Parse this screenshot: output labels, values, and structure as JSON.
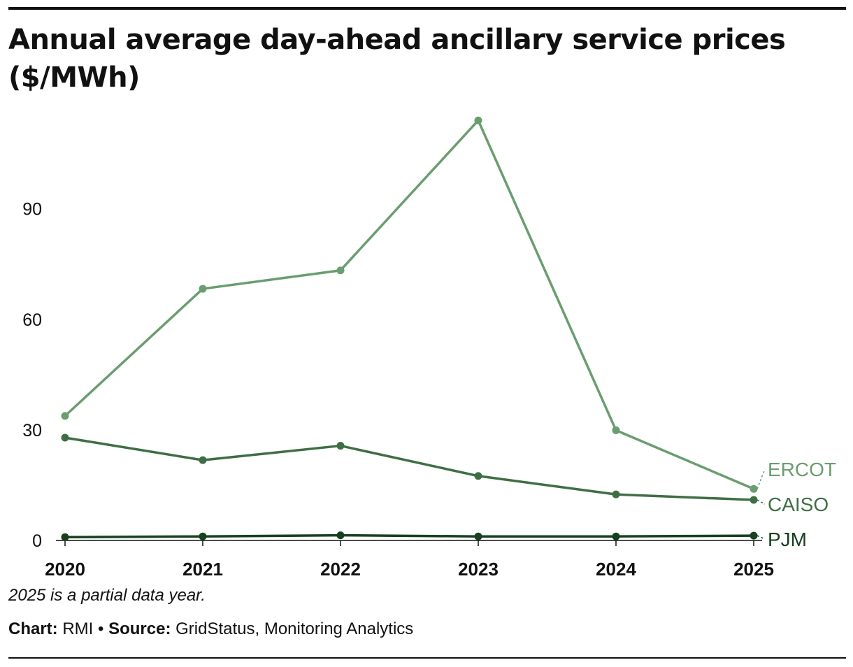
{
  "title": "Annual average day-ahead ancillary service prices ($/MWh)",
  "note": "2025 is a partial data year.",
  "source": {
    "chart_label": "Chart:",
    "chart_value": "RMI",
    "separator": " • ",
    "source_label": "Source:",
    "source_value": "GridStatus, Monitoring Analytics"
  },
  "chart_data": {
    "type": "line",
    "title": "Annual average day-ahead ancillary service prices ($/MWh)",
    "xlabel": "",
    "ylabel": "",
    "x": [
      "2020",
      "2021",
      "2022",
      "2023",
      "2024",
      "2025"
    ],
    "ylim": [
      0,
      115
    ],
    "yticks": [
      "0",
      "30",
      "60",
      "90"
    ],
    "grid": false,
    "legend": "direct labels at right end of lines",
    "series": [
      {
        "name": "ERCOT",
        "color": "#6a9d6f",
        "values": [
          33.8,
          68.3,
          73.3,
          114.0,
          29.9,
          14.0
        ]
      },
      {
        "name": "CAISO",
        "color": "#3f6e45",
        "values": [
          27.9,
          21.8,
          25.7,
          17.5,
          12.5,
          11.0
        ]
      },
      {
        "name": "PJM",
        "color": "#17401f",
        "values": [
          0.9,
          1.1,
          1.4,
          1.1,
          1.1,
          1.3
        ]
      }
    ]
  }
}
